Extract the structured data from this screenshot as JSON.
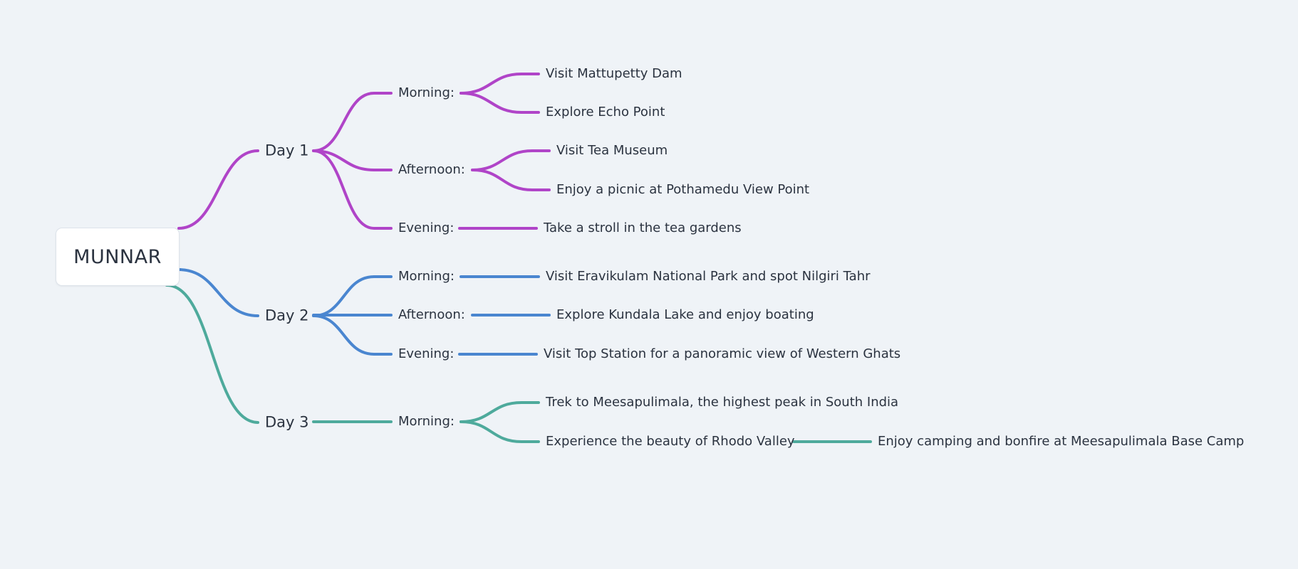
{
  "root": {
    "label": "MUNNAR"
  },
  "colors": {
    "day1": "#b044c8",
    "day2": "#4a86d0",
    "day3": "#4eaa9c"
  },
  "days": [
    {
      "label": "Day 1",
      "periods": [
        {
          "label": "Morning:",
          "activities": [
            "Visit Mattupetty Dam",
            "Explore Echo Point"
          ]
        },
        {
          "label": "Afternoon:",
          "activities": [
            "Visit Tea Museum",
            "Enjoy a picnic at Pothamedu View Point"
          ]
        },
        {
          "label": "Evening:",
          "activities": [
            "Take a stroll in the tea gardens"
          ]
        }
      ]
    },
    {
      "label": "Day 2",
      "periods": [
        {
          "label": "Morning:",
          "activities": [
            "Visit Eravikulam National Park and spot Nilgiri Tahr"
          ]
        },
        {
          "label": "Afternoon:",
          "activities": [
            "Explore Kundala Lake and enjoy boating"
          ]
        },
        {
          "label": "Evening:",
          "activities": [
            "Visit Top Station for a panoramic view of Western Ghats"
          ]
        }
      ]
    },
    {
      "label": "Day 3",
      "periods": [
        {
          "label": "Morning:",
          "activities": [
            "Trek to Meesapulimala, the highest peak in South India",
            "Experience the beauty of Rhodo Valley"
          ],
          "followup": "Enjoy camping and bonfire at Meesapulimala Base Camp"
        }
      ]
    }
  ]
}
